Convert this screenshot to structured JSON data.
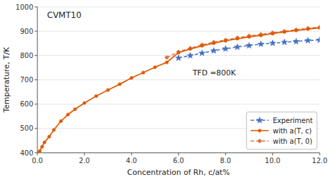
{
  "chart_data": {
    "type": "line",
    "title": "CVMT10",
    "x_label": "Concentration of Rh, c/at%",
    "y_label": "Temperature, T/K",
    "annotation": "TFD =800K",
    "xlim": [
      0,
      12.0
    ],
    "ylim": [
      400,
      1000
    ],
    "xticks": [
      {
        "value": 0.0,
        "label": "0.0"
      },
      {
        "value": 2.0,
        "label": "2.0"
      },
      {
        "value": 4.0,
        "label": "4.0"
      },
      {
        "value": 6.0,
        "label": "6.0"
      },
      {
        "value": 8.0,
        "label": "8.0"
      },
      {
        "value": 10.0,
        "label": "10.0"
      },
      {
        "value": 12.0,
        "label": "12.0"
      }
    ],
    "yticks": [
      400,
      500,
      600,
      700,
      800,
      900,
      1000
    ],
    "grid": "y",
    "legend": "lower right",
    "series": [
      {
        "name": "Experiment",
        "color": "#4472c4",
        "marker": "star",
        "line_style": "dashed",
        "x": [
          6.0,
          6.5,
          7.0,
          7.5,
          8.0,
          8.5,
          9.0,
          9.5,
          10.0,
          10.5,
          11.0,
          11.5,
          12.0
        ],
        "values": [
          790,
          800,
          810,
          820,
          828,
          835,
          841,
          847,
          851,
          855,
          858,
          862,
          864
        ]
      },
      {
        "name": "with a(T, c)",
        "color": "#e05a00",
        "marker": "circle",
        "line_style": "solid",
        "x": [
          0.05,
          0.1,
          0.2,
          0.3,
          0.5,
          0.7,
          1.0,
          1.3,
          1.6,
          2.0,
          2.5,
          3.0,
          3.5,
          4.0,
          4.5,
          5.0,
          5.5,
          6.0,
          6.5,
          7.0,
          7.5,
          8.0,
          8.5,
          9.0,
          9.5,
          10.0,
          10.5,
          11.0,
          11.5,
          12.0
        ],
        "values": [
          400,
          407,
          425,
          443,
          466,
          494,
          530,
          557,
          579,
          605,
          633,
          658,
          682,
          708,
          730,
          752,
          772,
          812,
          827,
          840,
          851,
          861,
          869,
          877,
          883,
          890,
          897,
          903,
          909,
          914
        ]
      },
      {
        "name": "with a(T, 0)",
        "color": "#e07040",
        "marker": "diamond",
        "line_style": "dashed",
        "x": [
          5.5,
          6.0,
          6.5,
          7.0,
          7.5,
          8.0,
          8.5,
          9.0,
          9.5,
          10.0,
          10.5,
          11.0,
          11.5,
          12.0
        ],
        "values": [
          792,
          815,
          830,
          844,
          855,
          864,
          873,
          881,
          887,
          894,
          900,
          906,
          912,
          917
        ]
      }
    ]
  }
}
